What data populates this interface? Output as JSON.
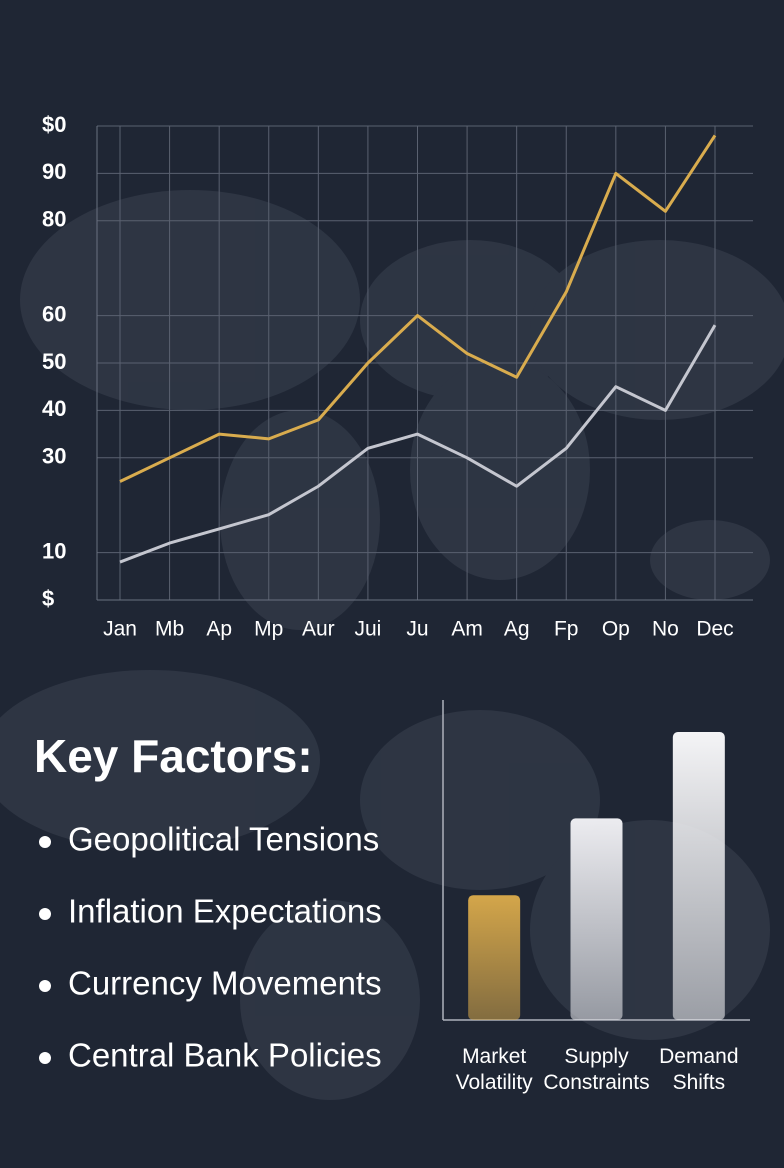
{
  "chart_data": [
    {
      "type": "line",
      "categories": [
        "Jan",
        "Mb",
        "Ap",
        "Mp",
        "Aur",
        "Jui",
        "Ju",
        "Am",
        "Ag",
        "Fp",
        "Op",
        "No",
        "Dec"
      ],
      "series": [
        {
          "color": "#d9ac4e",
          "values": [
            25,
            30,
            35,
            34,
            38,
            50,
            60,
            52,
            47,
            65,
            90,
            82,
            98
          ]
        },
        {
          "color": "#c4c6cf",
          "values": [
            8,
            12,
            15,
            18,
            24,
            32,
            35,
            30,
            24,
            32,
            45,
            40,
            58
          ]
        }
      ],
      "ylim": [
        0,
        100
      ],
      "yticks": [
        {
          "value": 0,
          "label": "$"
        },
        10,
        30,
        40,
        50,
        60,
        80,
        90,
        {
          "value": 100,
          "label": "$0"
        }
      ],
      "grid": true
    },
    {
      "type": "bar",
      "categories": [
        "Market Volatility",
        "Supply Constraints",
        "Demand Shifts"
      ],
      "values": [
        39,
        63,
        90
      ],
      "colors": [
        "#d4a64a",
        "#ececf0",
        "#f4f4f6"
      ],
      "ylim": [
        0,
        100
      ]
    }
  ],
  "key_factors": {
    "title": "Key Factors:",
    "items": [
      "Geopolitical Tensions",
      "Inflation Expectations",
      "Currency Movements",
      "Central Bank Policies"
    ]
  }
}
